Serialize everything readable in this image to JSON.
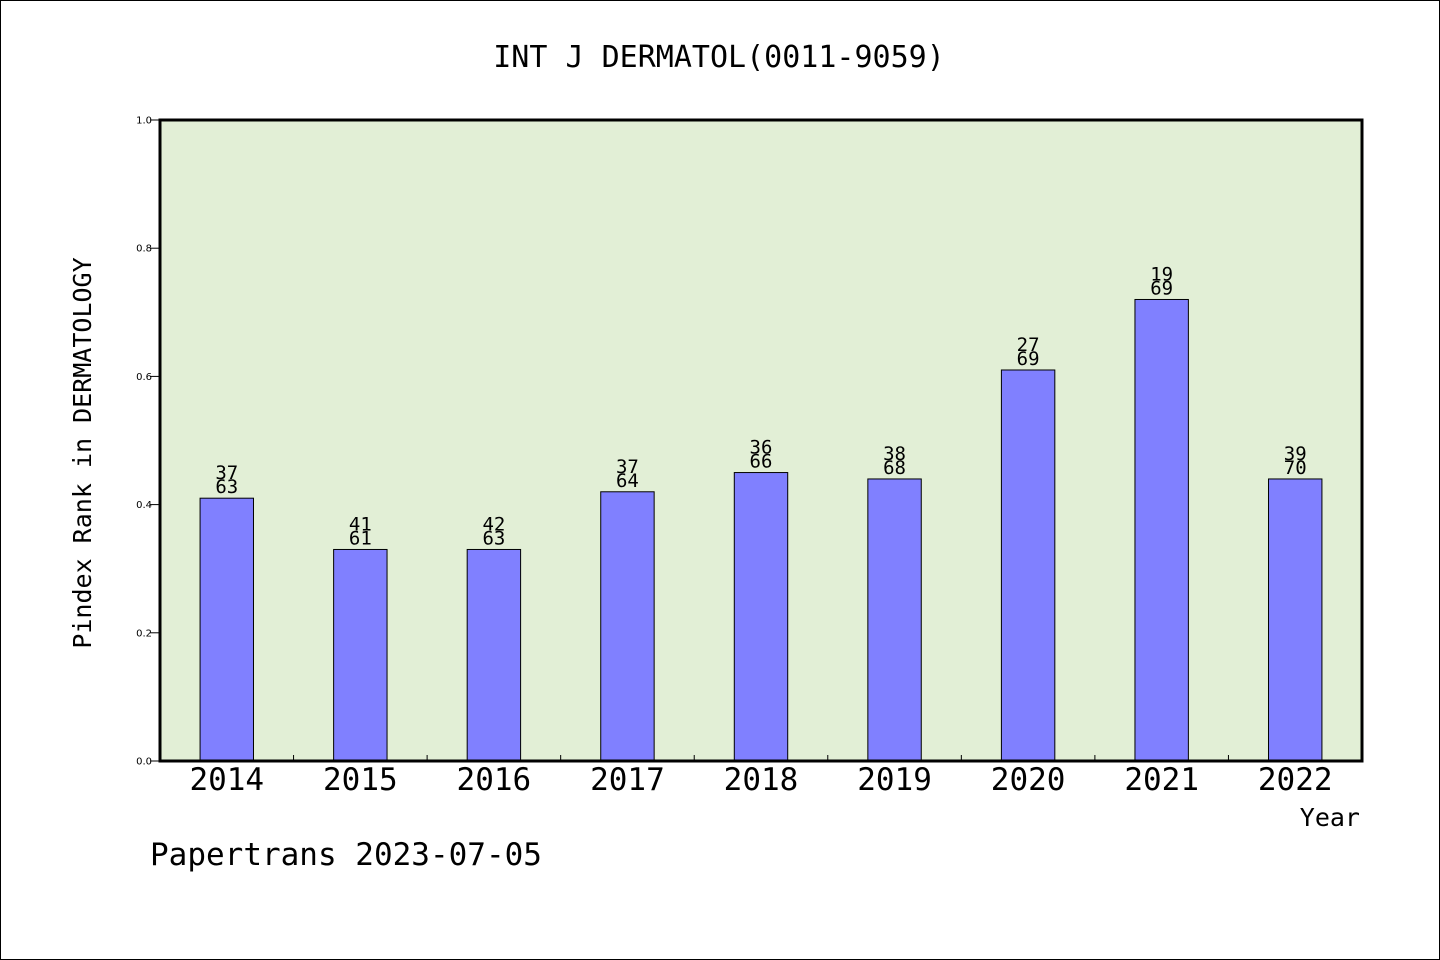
{
  "chart_data": {
    "type": "bar",
    "title": "INT J DERMATOL(0011-9059)",
    "xlabel": "Year",
    "ylabel": "Pindex Rank in DERMATOLOGY",
    "ylim": [
      0,
      1.0
    ],
    "yticks": [
      "0.0",
      "0.2",
      "0.4",
      "0.6",
      "0.8",
      "1.0"
    ],
    "grid": false,
    "categories": [
      "2014",
      "2015",
      "2016",
      "2017",
      "2018",
      "2019",
      "2020",
      "2021",
      "2022"
    ],
    "values": [
      0.41,
      0.33,
      0.33,
      0.42,
      0.45,
      0.44,
      0.61,
      0.72,
      0.44
    ],
    "rank_labels": [
      "37",
      "41",
      "42",
      "37",
      "36",
      "38",
      "27",
      "19",
      "39"
    ],
    "total_labels": [
      "63",
      "61",
      "63",
      "64",
      "66",
      "68",
      "69",
      "69",
      "70"
    ],
    "colors": {
      "bar": "#8080ff",
      "plot_background": "#e2efd6",
      "axis": "#000000"
    }
  },
  "footer": {
    "credit": "Papertrans 2023-07-05"
  }
}
